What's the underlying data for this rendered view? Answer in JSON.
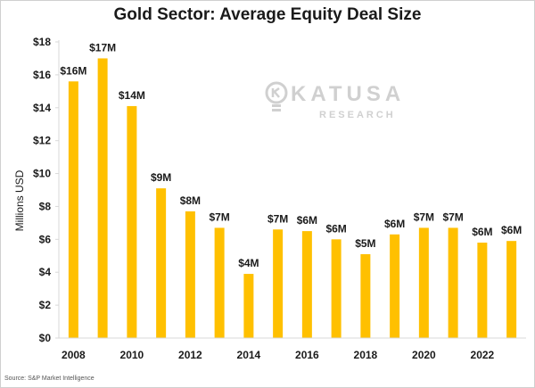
{
  "source": "Source: S&P Market Intelligence",
  "watermark": {
    "name": "KATUSA",
    "sub": "RESEARCH"
  },
  "colors": {
    "bar": "#FFC000",
    "axis": "#d9d9d9",
    "text": "#1a1a1a"
  },
  "chart_data": {
    "type": "bar",
    "title": "Gold Sector: Average Equity Deal Size",
    "xlabel": "",
    "ylabel": "Millions USD",
    "categories": [
      "2008",
      "2009",
      "2010",
      "2011",
      "2012",
      "2013",
      "2014",
      "2015",
      "2016",
      "2017",
      "2018",
      "2019",
      "2020",
      "2021",
      "2022",
      "2023"
    ],
    "x_tick_labels": [
      "2008",
      "2010",
      "2012",
      "2014",
      "2016",
      "2018",
      "2020",
      "2022"
    ],
    "values": [
      15.6,
      17.0,
      14.1,
      9.1,
      7.7,
      6.7,
      3.9,
      6.6,
      6.5,
      6.0,
      5.1,
      6.3,
      6.7,
      6.7,
      5.8,
      5.9
    ],
    "data_labels": [
      "$16M",
      "$17M",
      "$14M",
      "$9M",
      "$8M",
      "$7M",
      "$4M",
      "$7M",
      "$6M",
      "$6M",
      "$5M",
      "$6M",
      "$7M",
      "$7M",
      "$6M",
      "$6M"
    ],
    "y_ticks": [
      0,
      2,
      4,
      6,
      8,
      10,
      12,
      14,
      16,
      18
    ],
    "y_tick_labels": [
      "$0",
      "$2",
      "$4",
      "$6",
      "$8",
      "$10",
      "$12",
      "$14",
      "$16",
      "$18"
    ],
    "ylim": [
      0,
      18
    ],
    "grid": false,
    "legend": "none"
  }
}
